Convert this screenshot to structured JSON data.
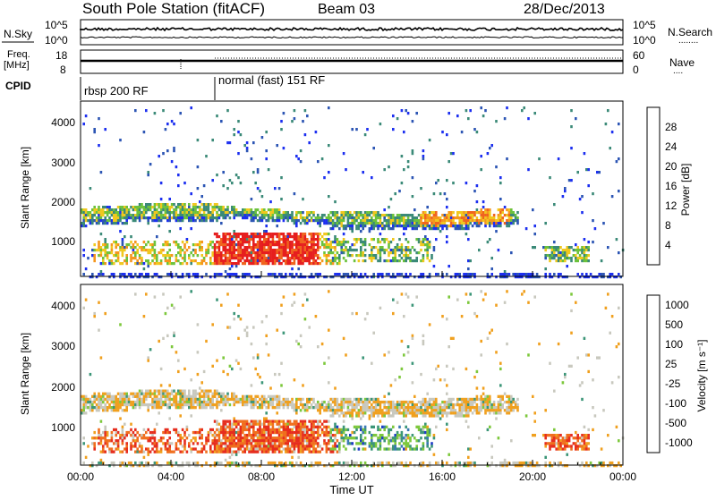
{
  "header": {
    "station": "South Pole Station (fitACF)",
    "beam": "Beam 03",
    "date": "28/Dec/2013"
  },
  "strips": {
    "nsky_label": "N.Sky",
    "nsearch_label": "N.Search",
    "nsearch_dots": "........",
    "freq_label": "Freq.",
    "freq_unit": "[MHz]",
    "nave_label": "Nave",
    "nave_dots": "....",
    "left_ticks_noise": [
      "10^5",
      "10^0"
    ],
    "right_ticks_noise": [
      "10^5",
      "10^0"
    ],
    "left_ticks_freq": [
      "18",
      "8"
    ],
    "right_ticks_freq": [
      "60",
      "0"
    ],
    "cpid_label": "CPID",
    "cpid_1": "rbsp 200 RF",
    "cpid_2": "normal (fast) 151 RF"
  },
  "chart_data": [
    {
      "type": "heatmap",
      "name": "power",
      "ylabel": "Slant Range [km]",
      "y_ticks": [
        "1000",
        "2000",
        "3000",
        "4000"
      ],
      "colorbar_label": "Power [dB]",
      "colorbar_ticks": [
        "4",
        "8",
        "12",
        "16",
        "20",
        "24",
        "28"
      ],
      "colors": [
        "#1c2ff0",
        "#2c55b4",
        "#3b8a78",
        "#6cc23c",
        "#f0c81e",
        "#f5961e",
        "#f0641e",
        "#e61e1e"
      ],
      "grid": false
    },
    {
      "type": "heatmap",
      "name": "velocity",
      "ylabel": "Slant Range [km]",
      "y_ticks": [
        "1000",
        "2000",
        "3000",
        "4000"
      ],
      "colorbar_label": "Velocity [m s⁻¹]",
      "colorbar_ticks": [
        "1000",
        "500",
        "100",
        "25",
        "-25",
        "-100",
        "-500",
        "-1000"
      ],
      "colors": [
        "#1e3cc8",
        "#3a78b4",
        "#3c9678",
        "#7dc83c",
        "#c8c8be",
        "#f0a01e",
        "#f06e1e",
        "#e62d1e"
      ],
      "grid": false
    }
  ],
  "xaxis": {
    "ticks": [
      "00:00",
      "04:00",
      "08:00",
      "12:00",
      "16:00",
      "20:00",
      "00:00"
    ],
    "label": "Time UT"
  }
}
